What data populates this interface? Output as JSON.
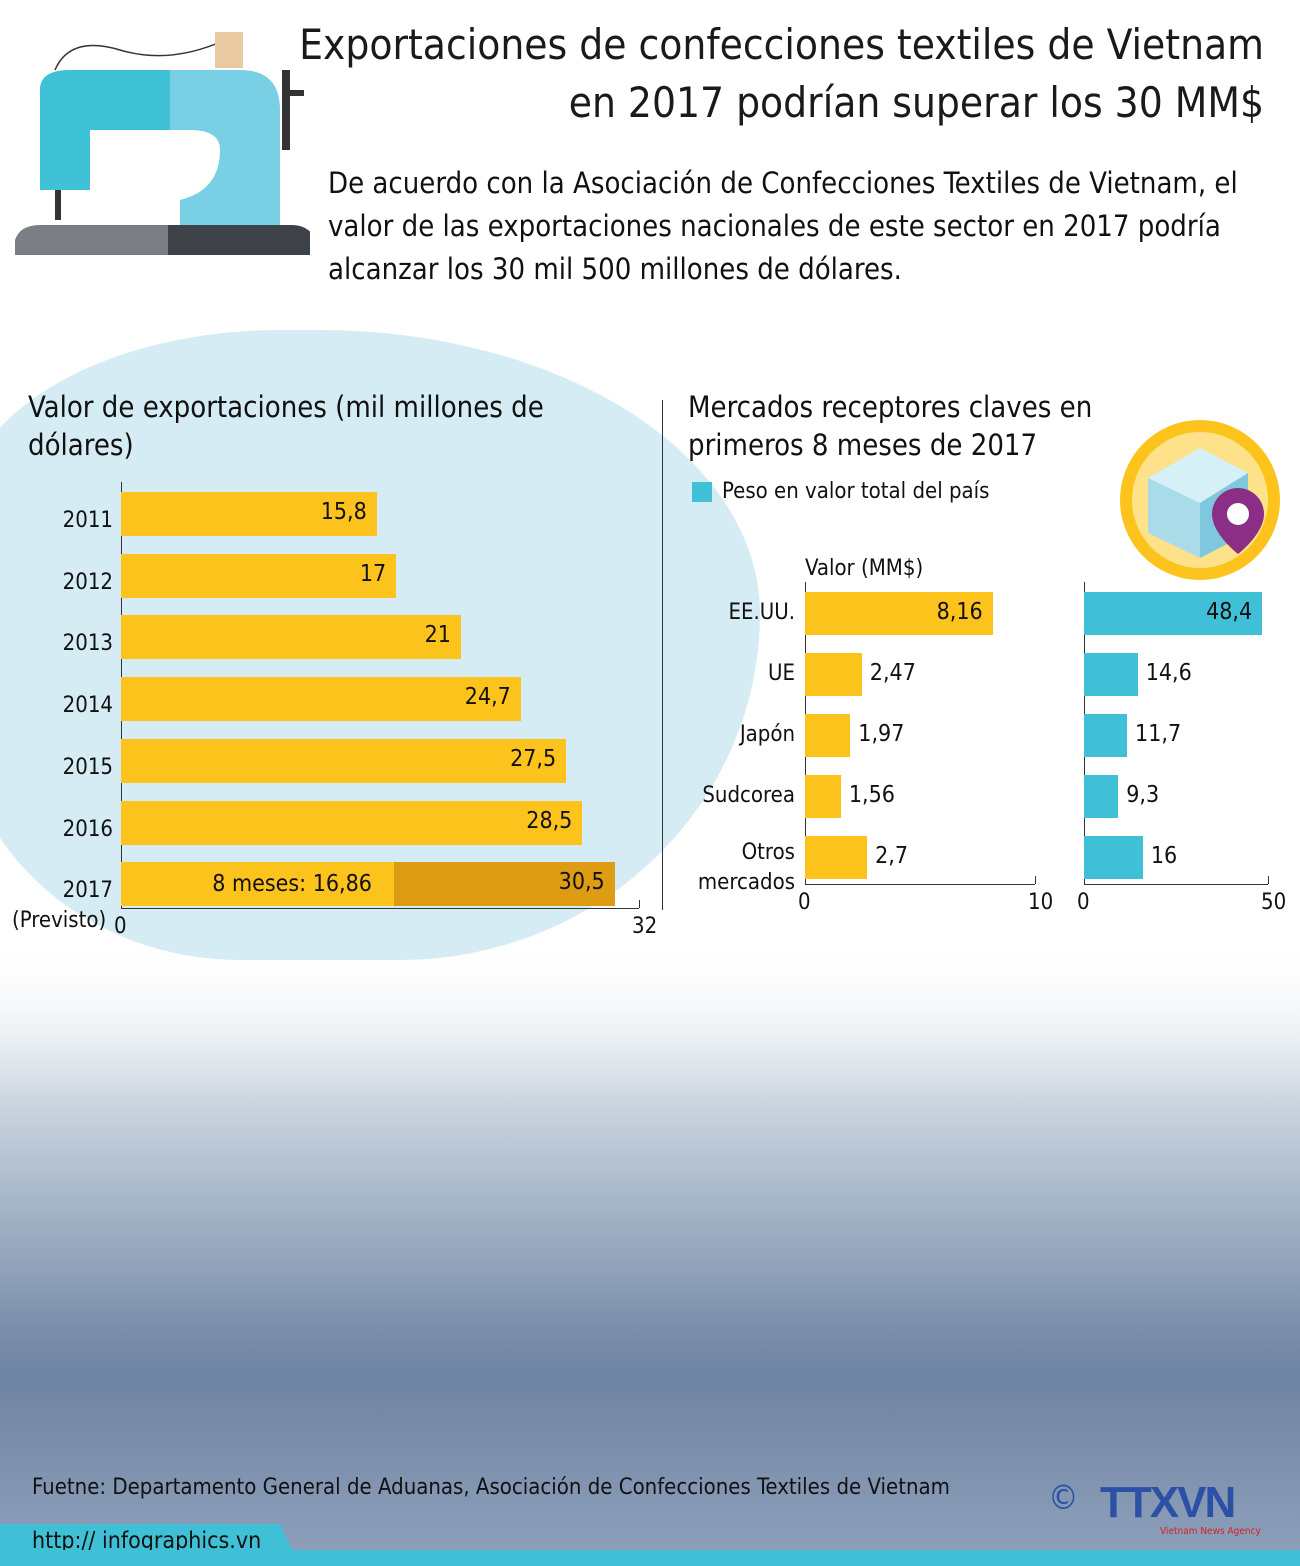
{
  "header": {
    "title_line1": "Exportaciones de confecciones textiles de Vietnam",
    "title_line2": "en 2017 podrían superar los 30 MM$",
    "intro": "De acuerdo con la Asociación de Confecciones Textiles de Vietnam, el valor de las exportaciones nacionales de este sector en 2017 podría alcanzar los 30 mil 500 millones de dólares."
  },
  "colors": {
    "yellow": "#fdc31d",
    "dark_yellow": "#dd9c12",
    "teal": "#40c0d6"
  },
  "chart_data": [
    {
      "type": "bar",
      "orientation": "horizontal",
      "title": "Valor de exportaciones (mil millones de dólares)",
      "categories": [
        "2011",
        "2012",
        "2013",
        "2014",
        "2015",
        "2016",
        "2017"
      ],
      "category_note": "(Previsto)",
      "values": [
        15.8,
        17,
        21,
        24.7,
        27.5,
        28.5,
        30.5
      ],
      "labels": [
        "15,8",
        "17",
        "21",
        "24,7",
        "27,5",
        "28,5",
        "30,5"
      ],
      "partial_2017": {
        "value": 16.86,
        "label": "8 meses: 16,86"
      },
      "xlim": [
        0,
        32
      ],
      "ticks": [
        "0",
        "32"
      ]
    },
    {
      "type": "bar",
      "orientation": "horizontal",
      "title": "Mercados receptores claves en primeros 8 meses de 2017",
      "xlabel": "Valor (MM$)",
      "categories": [
        "EE.UU.",
        "UE",
        "Japón",
        "Sudcorea",
        "Otros mercados"
      ],
      "values": [
        8.16,
        2.47,
        1.97,
        1.56,
        2.7
      ],
      "labels": [
        "8,16",
        "2,47",
        "1,97",
        "1,56",
        "2,7"
      ],
      "xlim": [
        0,
        10
      ],
      "ticks": [
        "0",
        "10"
      ]
    },
    {
      "type": "bar",
      "orientation": "horizontal",
      "legend": "Peso en valor total del país",
      "legend_position": "top-left",
      "categories": [
        "EE.UU.",
        "UE",
        "Japón",
        "Sudcorea",
        "Otros mercados"
      ],
      "values": [
        48.4,
        14.6,
        11.7,
        9.3,
        16
      ],
      "labels": [
        "48,4",
        "14,6",
        "11,7",
        "9,3",
        "16"
      ],
      "xlim": [
        0,
        50
      ],
      "ticks": [
        "0",
        "50"
      ]
    }
  ],
  "footer": {
    "source": "Fuetne: Departamento General de Aduanas, Asociación de Confecciones Textiles de Vietnam",
    "url": "http:// infographics.vn",
    "copyright": "©",
    "logo": "TTXVN",
    "logo_sub": "Vietnam News Agency"
  }
}
